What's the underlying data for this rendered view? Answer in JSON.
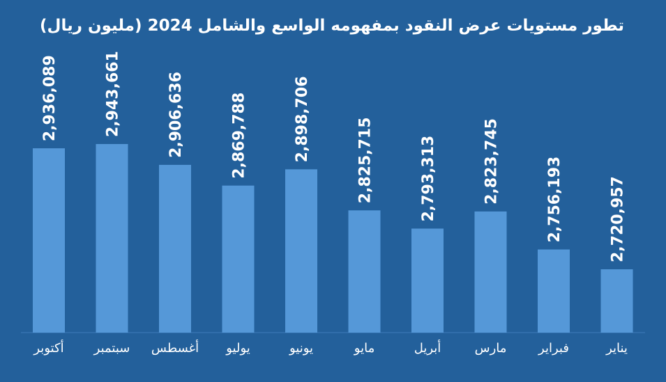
{
  "chart_data": {
    "type": "bar",
    "title": "تطور مستويات عرض النقود بمفهومه الواسع والشامل 2024 (مليون ريال)",
    "categories": [
      "يناير",
      "فبراير",
      "مارس",
      "أبريل",
      "مايو",
      "يونيو",
      "يوليو",
      "أغسطس",
      "سبتمبر",
      "أكتوبر"
    ],
    "value_labels": [
      "2,720,957",
      "2,756,193",
      "2,823,745",
      "2,793,313",
      "2,825,715",
      "2,898,706",
      "2,869,788",
      "2,906,636",
      "2,943,661",
      "2,936,089"
    ],
    "values": [
      2720957,
      2756193,
      2823745,
      2793313,
      2825715,
      2898706,
      2869788,
      2906636,
      2943661,
      2936089
    ],
    "category_order": "rtl",
    "grid": false,
    "legend": "none",
    "colors": {
      "background": "#23609b",
      "bar": "#5598d8",
      "text": "#ffffff"
    }
  }
}
